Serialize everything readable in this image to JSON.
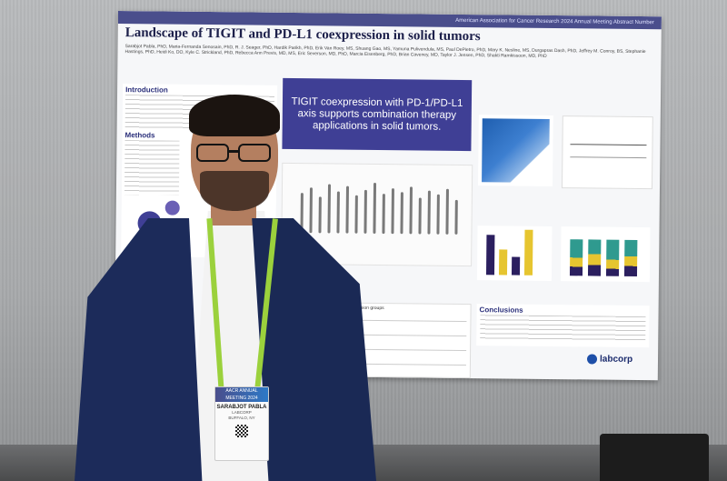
{
  "poster": {
    "banner": "American Association for Cancer Research 2024 Annual Meeting  Abstract Number",
    "title": "Landscape of TIGIT and PD-L1 coexpression in solid tumors",
    "authors": "Sarabjot Pabla, PhD, Maria-Fernanda Senosain, PhD, R. J. Seager, PhD, Hardik Parikh, PhD, Erik Van Roey, MS, Shuang Gao, MS, Yamuna Pulivendula, MS, Paul DePietro, PhD, Mary K. Nesline, MS, Durgapras Dash, PhD, Jeffrey M. Conroy, BS, Stephanie Hastings, PhD, Heidi Ko, DO, Kyle C. Strickland, PhD, Rebecca Ann Previs, MD, MS, Eric Severson, MD, PhD, Marcia Eisenberg, PhD, Brian Caveney, MD, Taylor J. Jensen, PhD, Shakti Ramkissoon, MD, PhD",
    "sections": {
      "introduction": "Introduction",
      "methods": "Methods"
    },
    "callout": "TIGIT coexpression with PD-1/PD-L1 axis supports combination therapy applications in solid tumors.",
    "table_title": "Table 2. PD-L1 IHC and TIGIT expression groups",
    "conclusions": "Conclusions",
    "logo": "labcorp"
  },
  "badge": {
    "header": "AACR ANNUAL MEETING 2024",
    "name": "SARABJOT PABLA",
    "org": "LABCORP",
    "city": "BUFFALO, NY"
  },
  "colors": {
    "poster_accent": "#3f3f95",
    "lanyard": "#9bd13c",
    "jacket": "#1c2b5a"
  }
}
